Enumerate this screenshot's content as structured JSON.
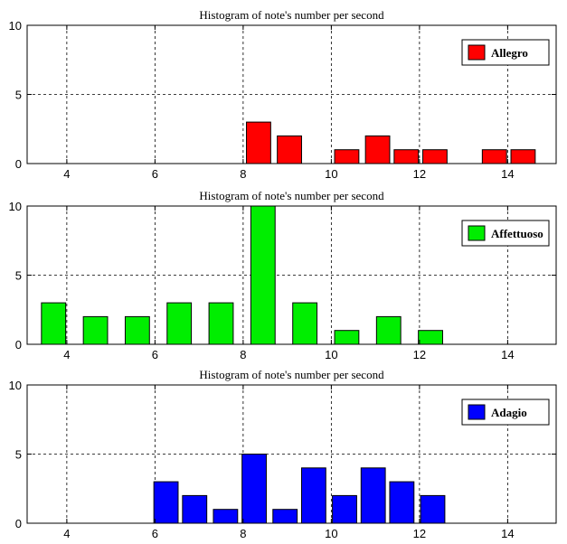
{
  "chart_data": [
    {
      "type": "bar",
      "title": "Histogram of note's number per second",
      "xlabel": "",
      "ylabel": "",
      "xlim": [
        3.1,
        15.1
      ],
      "ylim": [
        0,
        10
      ],
      "xticks": [
        4,
        6,
        8,
        10,
        12,
        14
      ],
      "yticks": [
        0,
        5,
        10
      ],
      "grid": true,
      "legend": "top-right",
      "series": [
        {
          "name": "Allegro",
          "color": "#ff0000",
          "x": [
            8.35,
            9.05,
            10.35,
            11.05,
            11.7,
            12.35,
            13.7,
            14.35
          ],
          "values": [
            3,
            2,
            1,
            2,
            1,
            1,
            1,
            1
          ]
        }
      ]
    },
    {
      "type": "bar",
      "title": "Histogram of note's number per second",
      "xlabel": "",
      "ylabel": "",
      "xlim": [
        3.1,
        15.1
      ],
      "ylim": [
        0,
        10
      ],
      "xticks": [
        4,
        6,
        8,
        10,
        12,
        14
      ],
      "yticks": [
        0,
        5,
        10
      ],
      "grid": true,
      "legend": "top-right",
      "series": [
        {
          "name": "Affettuoso",
          "color": "#00ee00",
          "x": [
            3.7,
            4.65,
            5.6,
            6.55,
            7.5,
            8.45,
            9.4,
            10.35,
            11.3,
            12.25
          ],
          "values": [
            3,
            2,
            2,
            3,
            3,
            10,
            3,
            1,
            2,
            1
          ]
        }
      ]
    },
    {
      "type": "bar",
      "title": "Histogram of note's number per second",
      "xlabel": "",
      "ylabel": "",
      "xlim": [
        3.1,
        15.1
      ],
      "ylim": [
        0,
        10
      ],
      "xticks": [
        4,
        6,
        8,
        10,
        12,
        14
      ],
      "yticks": [
        0,
        5,
        10
      ],
      "grid": true,
      "legend": "top-right",
      "series": [
        {
          "name": "Adagio",
          "color": "#0000ff",
          "x": [
            6.25,
            6.9,
            7.6,
            8.25,
            8.95,
            9.6,
            10.3,
            10.95,
            11.6,
            12.3
          ],
          "values": [
            3,
            2,
            1,
            5,
            1,
            4,
            2,
            4,
            3,
            2
          ]
        }
      ]
    }
  ]
}
